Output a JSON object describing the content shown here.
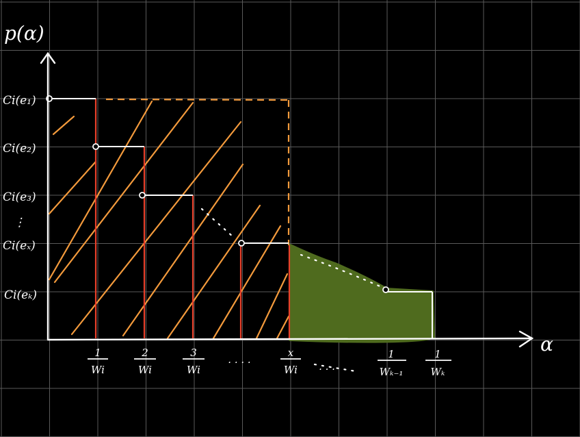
{
  "diagram": {
    "y_axis_label": "p(α)",
    "x_axis_label": "α",
    "y_tick_labels": [
      "Ci(e₁)",
      "Ci(e₂)",
      "Ci(e₃)",
      "Ci(eₓ)",
      "Ci(eₖ)"
    ],
    "y_dots": "⋮",
    "x_tick_labels": [
      {
        "num": "1",
        "den": "Wi"
      },
      {
        "num": "2",
        "den": "Wi"
      },
      {
        "num": "3",
        "den": "Wi"
      },
      {
        "num": "x",
        "den": "Wi"
      },
      {
        "num": "1",
        "den": "Wₖ₋₁"
      },
      {
        "num": "1",
        "den": "Wₖ"
      }
    ],
    "x_dots": ". . . .",
    "x_dots_2": ". . .",
    "colors": {
      "background": "#000000",
      "grid": "#5a5a5a",
      "axis": "#ffffff",
      "red_lines": "#e8402a",
      "hatch": "#f39a3c",
      "green_fill": "#4f6b1e"
    }
  }
}
